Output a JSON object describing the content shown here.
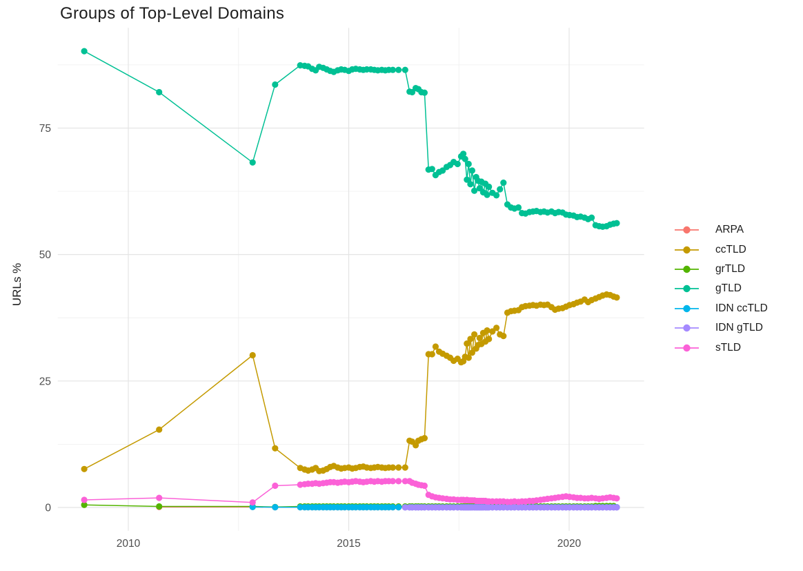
{
  "title": "Groups of Top-Level Domains",
  "y_axis_title": "URLs %",
  "axes": {
    "x_tick_labels": [
      "2010",
      "2015",
      "2020"
    ],
    "x_tick_values": [
      2010,
      2015,
      2020
    ],
    "x_minor_values": [
      2012.5,
      2017.5
    ],
    "y_tick_labels": [
      "0",
      "25",
      "50",
      "75"
    ],
    "y_tick_values": [
      0,
      25,
      50,
      75
    ],
    "y_minor_values": [
      12.5,
      37.5,
      62.5,
      87.5
    ],
    "tick_label_color": "#4d4d4d",
    "grid_major_color": "#e4e4e4",
    "grid_minor_color": "#f0f0f0"
  },
  "legend": {
    "items": [
      "ARPA",
      "ccTLD",
      "grTLD",
      "gTLD",
      "IDN ccTLD",
      "IDN gTLD",
      "sTLD"
    ]
  },
  "chart_data": {
    "type": "line",
    "title": "Groups of Top-Level Domains",
    "xlabel": "",
    "ylabel": "URLs %",
    "xlim": [
      2008.4,
      2021.7
    ],
    "ylim": [
      -4.6,
      94.8
    ],
    "grid": true,
    "legend_position": "right",
    "x": [
      2009.0,
      2010.7,
      2012.82,
      2013.33,
      2013.9,
      2014.0,
      2014.08,
      2014.17,
      2014.25,
      2014.33,
      2014.42,
      2014.5,
      2014.58,
      2014.66,
      2014.75,
      2014.83,
      2014.91,
      2015.0,
      2015.08,
      2015.16,
      2015.25,
      2015.33,
      2015.41,
      2015.5,
      2015.58,
      2015.66,
      2015.75,
      2015.83,
      2015.91,
      2016.0,
      2016.13,
      2016.28,
      2016.38,
      2016.44,
      2016.52,
      2016.58,
      2016.65,
      2016.72,
      2016.81,
      2016.89,
      2016.97,
      2017.05,
      2017.13,
      2017.22,
      2017.3,
      2017.38,
      2017.47,
      2017.55,
      2017.6,
      2017.64,
      2017.68,
      2017.72,
      2017.76,
      2017.8,
      2017.85,
      2017.89,
      2017.93,
      2017.97,
      2018.01,
      2018.05,
      2018.1,
      2018.14,
      2018.18,
      2018.26,
      2018.35,
      2018.43,
      2018.51,
      2018.6,
      2018.68,
      2018.76,
      2018.85,
      2018.93,
      2019.01,
      2019.1,
      2019.18,
      2019.26,
      2019.35,
      2019.43,
      2019.51,
      2019.6,
      2019.68,
      2019.76,
      2019.85,
      2019.93,
      2020.01,
      2020.1,
      2020.18,
      2020.26,
      2020.35,
      2020.43,
      2020.51,
      2020.6,
      2020.68,
      2020.76,
      2020.85,
      2020.93,
      2021.01,
      2021.08
    ],
    "series": [
      {
        "name": "ARPA",
        "color": "#F8766D",
        "values": [
          null,
          0.1,
          0.1,
          0.05,
          0.05,
          0.05,
          0.05,
          0.05,
          0.05,
          0.05,
          0.05,
          0.05,
          0.05,
          0.05,
          0.05,
          0.05,
          0.05,
          0.05,
          0.05,
          0.05,
          0.05,
          0.05,
          0.05,
          0.05,
          0.05,
          0.05,
          0.05,
          0.05,
          0.05,
          0.05,
          0.05,
          0.05,
          0.05,
          0.05,
          0.05,
          0.05,
          0.05,
          0.05,
          0.05,
          0.05,
          0.05,
          0.05,
          0.05,
          0.05,
          0.05,
          0.05,
          0.05,
          0.05,
          0.05,
          0.05,
          0.05,
          0.05,
          0.05,
          0.05,
          0.05,
          0.05,
          0.05,
          0.05,
          0.05,
          0.05,
          0.05,
          0.05,
          0.05,
          0.05,
          0.05,
          0.05,
          0.05,
          0.05,
          0.05,
          0.05,
          0.05,
          0.05,
          0.05,
          0.05,
          0.05,
          0.05,
          0.05,
          0.05,
          0.05,
          0.05,
          0.05,
          0.05,
          0.05,
          0.05,
          0.05,
          0.05,
          0.05,
          0.05,
          0.05,
          0.05,
          0.05,
          0.05,
          0.05,
          0.05,
          0.05,
          0.05,
          0.05,
          0.05
        ]
      },
      {
        "name": "ccTLD",
        "color": "#C49A00",
        "values": [
          7.6,
          15.4,
          30.1,
          11.7,
          7.8,
          7.5,
          7.3,
          7.5,
          7.8,
          7.2,
          7.3,
          7.6,
          8.0,
          8.2,
          7.9,
          7.7,
          7.8,
          7.9,
          7.7,
          7.8,
          8.0,
          8.1,
          7.9,
          7.8,
          7.9,
          8.0,
          7.9,
          7.8,
          7.9,
          7.9,
          7.9,
          7.9,
          13.2,
          13.0,
          12.3,
          13.2,
          13.5,
          13.7,
          30.3,
          30.3,
          31.8,
          30.8,
          30.4,
          30.0,
          29.6,
          29.0,
          29.4,
          28.7,
          28.9,
          29.8,
          32.4,
          29.6,
          33.3,
          30.6,
          34.2,
          31.4,
          32.1,
          33.5,
          32.3,
          34.5,
          32.8,
          35.0,
          33.3,
          34.8,
          35.5,
          34.2,
          33.9,
          38.5,
          38.8,
          38.9,
          39.0,
          39.6,
          39.8,
          39.9,
          40.0,
          39.9,
          40.1,
          40.0,
          40.1,
          39.6,
          39.1,
          39.3,
          39.4,
          39.7,
          40.0,
          40.2,
          40.5,
          40.7,
          41.1,
          40.6,
          41.0,
          41.3,
          41.6,
          41.9,
          42.1,
          42.0,
          41.7,
          41.5
        ]
      },
      {
        "name": "grTLD",
        "color": "#53B400",
        "values": [
          0.5,
          0.2,
          0.2,
          0.1,
          0.2,
          0.2,
          0.2,
          0.2,
          0.2,
          0.2,
          0.2,
          0.2,
          0.2,
          0.2,
          0.2,
          0.2,
          0.2,
          0.2,
          0.2,
          0.2,
          0.2,
          0.2,
          0.2,
          0.2,
          0.2,
          0.2,
          0.2,
          0.2,
          0.2,
          0.2,
          0.2,
          0.2,
          0.2,
          0.2,
          0.2,
          0.2,
          0.2,
          0.2,
          0.2,
          0.2,
          0.2,
          0.2,
          0.2,
          0.2,
          0.2,
          0.2,
          0.2,
          0.2,
          0.2,
          0.2,
          0.2,
          0.2,
          0.2,
          0.2,
          0.2,
          0.2,
          0.2,
          0.2,
          0.2,
          0.2,
          0.2,
          0.2,
          0.2,
          0.2,
          0.2,
          0.2,
          0.2,
          0.2,
          0.2,
          0.2,
          0.2,
          0.2,
          0.2,
          0.2,
          0.2,
          0.2,
          0.2,
          0.2,
          0.2,
          0.2,
          0.2,
          0.2,
          0.2,
          0.2,
          0.2,
          0.2,
          0.2,
          0.2,
          0.2,
          0.2,
          0.2,
          0.3,
          0.3,
          0.3,
          0.3,
          0.3,
          0.3
        ]
      },
      {
        "name": "gTLD",
        "color": "#00C094",
        "values": [
          90.2,
          82.1,
          68.2,
          83.6,
          87.4,
          87.3,
          87.2,
          86.7,
          86.4,
          87.1,
          86.9,
          86.6,
          86.3,
          86.1,
          86.4,
          86.6,
          86.5,
          86.3,
          86.6,
          86.7,
          86.6,
          86.5,
          86.6,
          86.6,
          86.5,
          86.4,
          86.5,
          86.4,
          86.5,
          86.5,
          86.5,
          86.5,
          82.2,
          82.1,
          82.9,
          82.7,
          82.1,
          82.0,
          66.8,
          66.9,
          65.7,
          66.3,
          66.6,
          67.3,
          67.7,
          68.3,
          67.9,
          69.4,
          69.9,
          68.9,
          64.8,
          67.9,
          63.9,
          66.6,
          62.6,
          65.3,
          64.6,
          63.1,
          64.4,
          62.3,
          64.0,
          61.8,
          63.4,
          62.2,
          61.7,
          62.9,
          64.2,
          59.9,
          59.3,
          59.1,
          59.3,
          58.2,
          58.1,
          58.4,
          58.5,
          58.6,
          58.4,
          58.5,
          58.3,
          58.5,
          58.2,
          58.4,
          58.3,
          57.9,
          57.8,
          57.7,
          57.4,
          57.5,
          57.3,
          57.0,
          57.3,
          55.8,
          55.6,
          55.5,
          55.6,
          55.9,
          56.1,
          56.2
        ]
      },
      {
        "name": "IDN ccTLD",
        "color": "#00B6EB",
        "values": [
          null,
          null,
          0.1,
          0.05,
          0.05,
          0.05,
          0.05,
          0.05,
          0.05,
          0.05,
          0.05,
          0.05,
          0.05,
          0.05,
          0.05,
          0.05,
          0.05,
          0.05,
          0.05,
          0.05,
          0.05,
          0.05,
          0.05,
          0.05,
          0.05,
          0.05,
          0.05,
          0.05,
          0.05,
          0.05,
          0.05,
          0.05,
          0.05,
          0.05,
          0.05,
          0.05,
          0.05,
          0.05,
          0.05,
          0.05,
          0.05,
          0.05,
          0.05,
          0.05,
          0.05,
          0.05,
          0.05,
          0.05,
          0.05,
          0.05,
          0.05,
          0.05,
          0.05,
          0.05,
          0.05,
          0.05,
          0.05,
          0.05,
          0.05,
          0.05,
          0.05,
          0.05,
          0.05,
          0.05,
          0.05,
          0.05,
          0.05,
          0.05,
          0.05,
          0.05,
          0.05,
          0.05,
          0.05,
          0.05,
          0.05,
          0.05,
          0.05,
          0.05,
          0.05,
          0.05,
          0.05,
          0.05,
          0.05,
          0.05,
          0.05,
          0.05,
          0.05,
          0.05,
          0.05,
          0.05,
          0.05,
          0.05,
          0.05,
          0.05,
          0.05,
          0.05,
          0.05,
          0.05
        ]
      },
      {
        "name": "IDN gTLD",
        "color": "#A58AFF",
        "values": [
          null,
          null,
          null,
          null,
          null,
          null,
          null,
          null,
          null,
          null,
          null,
          null,
          null,
          null,
          null,
          null,
          null,
          null,
          null,
          null,
          null,
          null,
          null,
          null,
          null,
          null,
          null,
          null,
          null,
          null,
          null,
          0.02,
          0.02,
          0.02,
          0.02,
          0.02,
          0.02,
          0.02,
          0.02,
          0.02,
          0.02,
          0.02,
          0.02,
          0.02,
          0.02,
          0.02,
          0.02,
          0.02,
          0.02,
          0.02,
          0.02,
          0.02,
          0.02,
          0.02,
          0.02,
          0.02,
          0.02,
          0.02,
          0.02,
          0.02,
          0.02,
          0.02,
          0.02,
          0.02,
          0.02,
          0.02,
          0.02,
          0.02,
          0.02,
          0.02,
          0.02,
          0.02,
          0.02,
          0.02,
          0.02,
          0.02,
          0.02,
          0.02,
          0.02,
          0.02,
          0.02,
          0.02,
          0.02,
          0.02,
          0.02,
          0.02,
          0.02,
          0.02,
          0.02,
          0.02,
          0.02,
          0.02,
          0.02,
          0.02,
          0.02,
          0.02,
          0.02,
          0.02
        ]
      },
      {
        "name": "sTLD",
        "color": "#FB61D7",
        "values": [
          1.5,
          1.9,
          1.0,
          4.3,
          4.5,
          4.6,
          4.7,
          4.7,
          4.8,
          4.7,
          4.8,
          4.9,
          5.0,
          5.0,
          4.9,
          5.0,
          5.1,
          5.0,
          5.1,
          5.2,
          5.1,
          5.0,
          5.1,
          5.2,
          5.1,
          5.2,
          5.1,
          5.2,
          5.2,
          5.2,
          5.2,
          5.2,
          5.2,
          4.9,
          4.7,
          4.5,
          4.4,
          4.3,
          2.5,
          2.2,
          2.0,
          1.9,
          1.8,
          1.7,
          1.6,
          1.6,
          1.5,
          1.5,
          1.5,
          1.4,
          1.5,
          1.4,
          1.4,
          1.4,
          1.4,
          1.3,
          1.3,
          1.3,
          1.3,
          1.3,
          1.3,
          1.2,
          1.2,
          1.2,
          1.2,
          1.2,
          1.2,
          1.1,
          1.1,
          1.2,
          1.1,
          1.2,
          1.2,
          1.3,
          1.3,
          1.4,
          1.5,
          1.6,
          1.7,
          1.8,
          1.9,
          2.0,
          2.1,
          2.2,
          2.1,
          2.0,
          1.9,
          1.9,
          1.8,
          1.8,
          1.9,
          1.8,
          1.7,
          1.8,
          1.9,
          2.0,
          1.9,
          1.8
        ]
      }
    ]
  }
}
